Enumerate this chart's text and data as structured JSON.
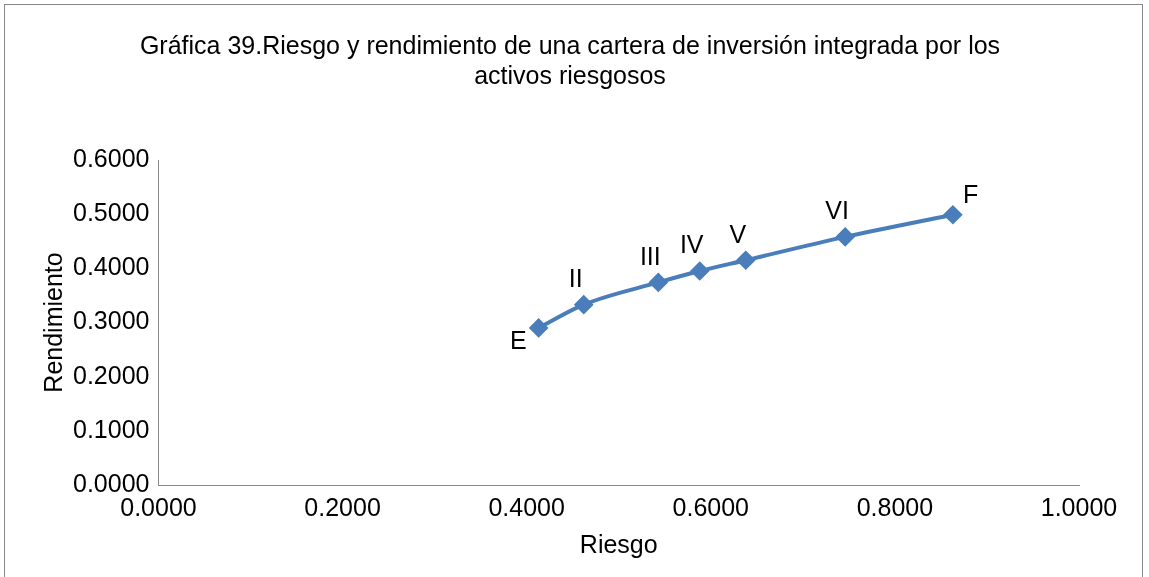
{
  "chart_data": {
    "type": "line",
    "title": "Gráfica 39.Riesgo y rendimiento de una cartera de inversión integrada por los activos riesgosos",
    "xlabel": "Riesgo",
    "ylabel": "Rendimiento",
    "x": [
      0.413,
      0.462,
      0.543,
      0.588,
      0.638,
      0.746,
      0.863
    ],
    "series": [
      {
        "color": "#4a7ebb",
        "values": [
          0.29,
          0.333,
          0.374,
          0.395,
          0.415,
          0.458,
          0.499
        ]
      }
    ],
    "xlim": [
      0,
      1
    ],
    "xticks": [
      {
        "value": 0,
        "label": "0.0000"
      },
      {
        "value": 0.2,
        "label": "0.2000"
      },
      {
        "value": 0.4,
        "label": "0.4000"
      },
      {
        "value": 0.6,
        "label": "0.6000"
      },
      {
        "value": 0.8,
        "label": "0.8000"
      },
      {
        "value": 1,
        "label": "1.0000"
      }
    ],
    "ylim": [
      0,
      0.6
    ],
    "yticks": [
      {
        "value": 0,
        "label": "0.0000"
      },
      {
        "value": 0.1,
        "label": "0.1000"
      },
      {
        "value": 0.2,
        "label": "0.2000"
      },
      {
        "value": 0.3,
        "label": "0.3000"
      },
      {
        "value": 0.4,
        "label": "0.4000"
      },
      {
        "value": 0.5,
        "label": "0.5000"
      },
      {
        "value": 0.6,
        "label": "0.6000"
      }
    ],
    "annotations": [
      {
        "text": "E",
        "x": 0.413,
        "y": 0.29
      },
      {
        "text": "II",
        "x": 0.462,
        "y": 0.333
      },
      {
        "text": "III",
        "x": 0.543,
        "y": 0.374
      },
      {
        "text": "IV",
        "x": 0.588,
        "y": 0.395
      },
      {
        "text": "V",
        "x": 0.638,
        "y": 0.415
      },
      {
        "text": "VI",
        "x": 0.746,
        "y": 0.458
      },
      {
        "text": "F",
        "x": 0.863,
        "y": 0.499
      }
    ],
    "grid": false,
    "legend": false,
    "marker": "diamond",
    "line_style": "solid"
  }
}
